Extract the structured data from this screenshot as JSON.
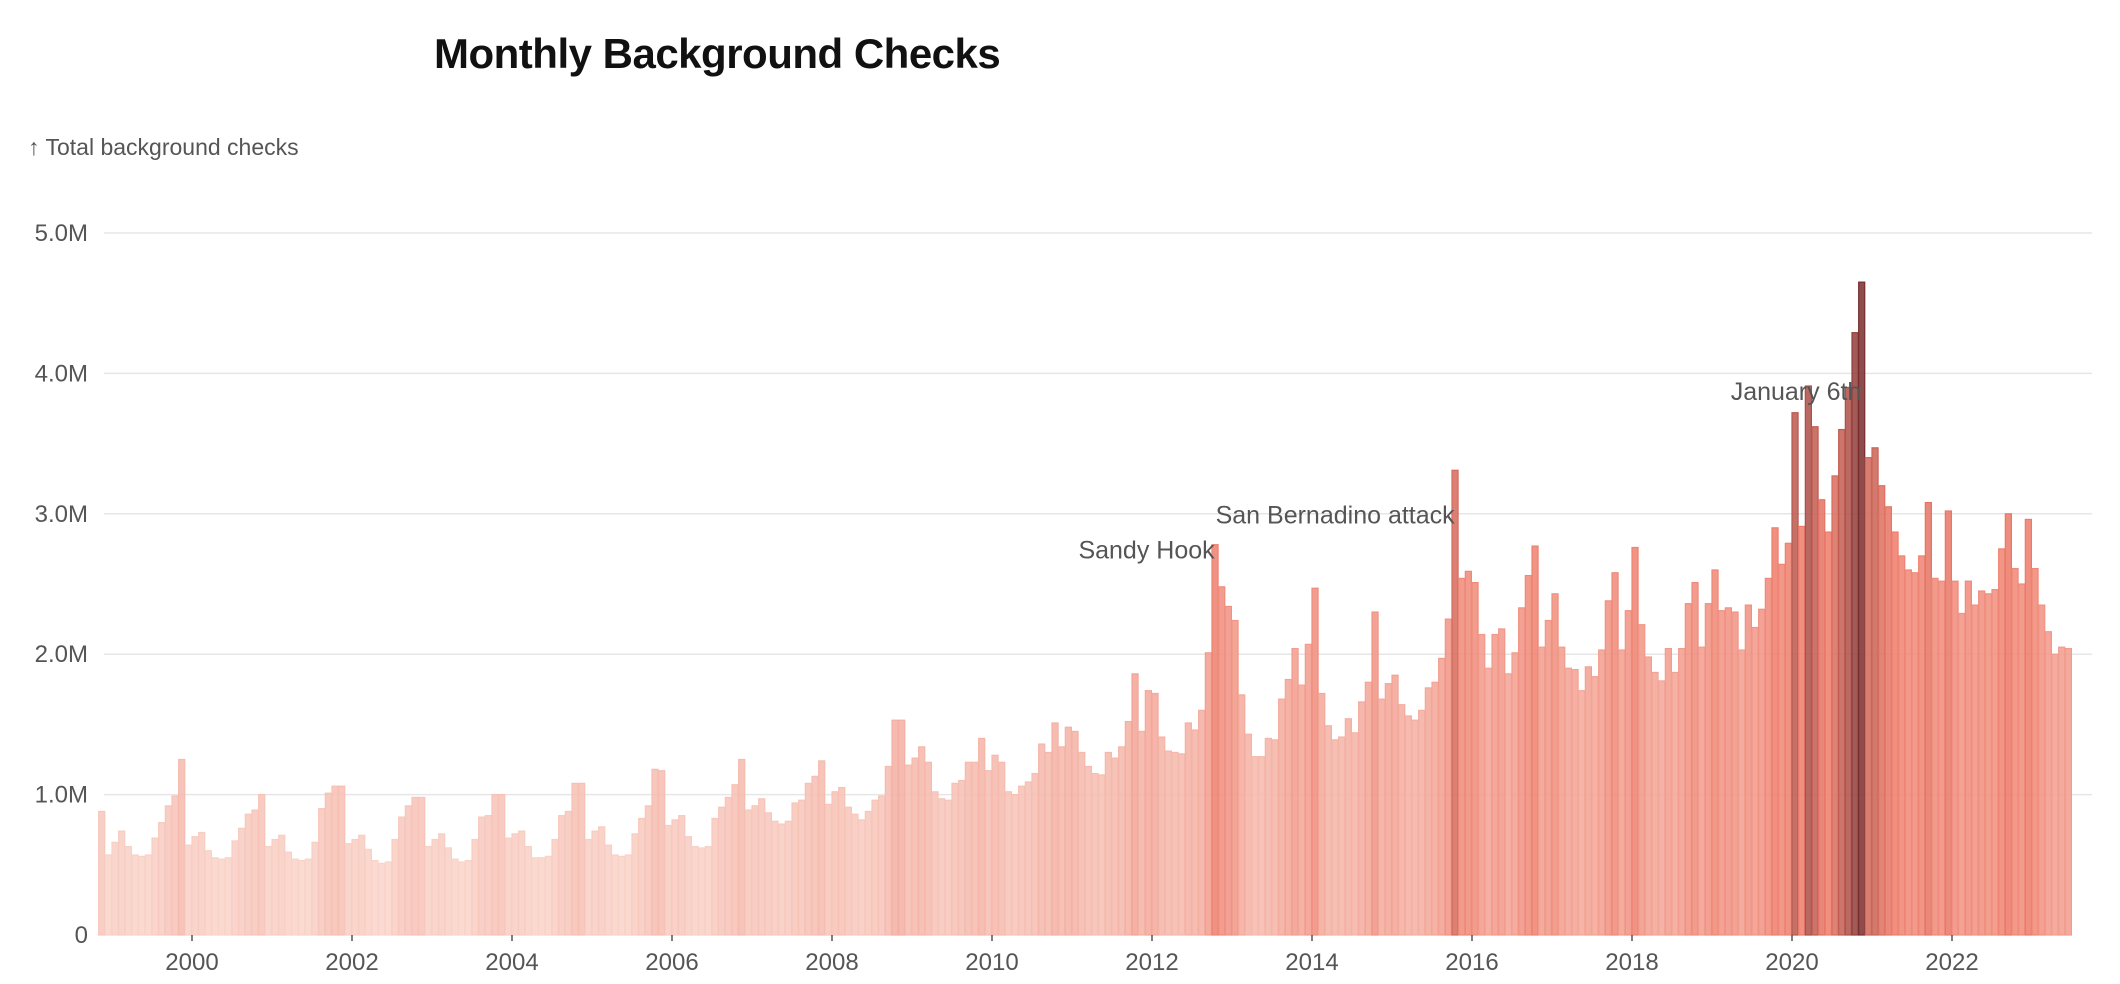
{
  "chart_data": {
    "type": "bar",
    "title": "Monthly Background Checks",
    "ylabel": "↑ Total background checks",
    "xlabel": "",
    "ylim": [
      0,
      5000000
    ],
    "xlim": [
      1998.9,
      2023.75
    ],
    "yticks": [
      {
        "value": 0,
        "label": "0"
      },
      {
        "value": 1000000,
        "label": "1.0M"
      },
      {
        "value": 2000000,
        "label": "2.0M"
      },
      {
        "value": 3000000,
        "label": "3.0M"
      },
      {
        "value": 4000000,
        "label": "4.0M"
      },
      {
        "value": 5000000,
        "label": "5.0M"
      }
    ],
    "xticks": [
      {
        "value": 2000,
        "label": "2000"
      },
      {
        "value": 2002,
        "label": "2002"
      },
      {
        "value": 2004,
        "label": "2004"
      },
      {
        "value": 2006,
        "label": "2006"
      },
      {
        "value": 2008,
        "label": "2008"
      },
      {
        "value": 2010,
        "label": "2010"
      },
      {
        "value": 2012,
        "label": "2012"
      },
      {
        "value": 2014,
        "label": "2014"
      },
      {
        "value": 2016,
        "label": "2016"
      },
      {
        "value": 2018,
        "label": "2018"
      },
      {
        "value": 2020,
        "label": "2020"
      },
      {
        "value": 2022,
        "label": "2022"
      }
    ],
    "start": {
      "year": 1998,
      "month": 11
    },
    "color_scale": {
      "low": "#fbe5dc",
      "mid": "#ee7a68",
      "high": "#7a2e2e",
      "max_value": 4650000
    },
    "annotations": [
      {
        "label": "Sandy Hook",
        "year": 2012,
        "month": 12
      },
      {
        "label": "San Bernadino attack",
        "year": 2015,
        "month": 12
      },
      {
        "label": "January 6th",
        "year": 2021,
        "month": 1
      }
    ],
    "series": [
      {
        "name": "Total background checks",
        "values": [
          880000,
          570000,
          660000,
          740000,
          630000,
          570000,
          560000,
          570000,
          690000,
          800000,
          920000,
          990000,
          1250000,
          640000,
          700000,
          730000,
          600000,
          550000,
          540000,
          550000,
          670000,
          760000,
          860000,
          890000,
          1000000,
          630000,
          680000,
          710000,
          590000,
          540000,
          530000,
          540000,
          660000,
          900000,
          1010000,
          1060000,
          1060000,
          650000,
          680000,
          710000,
          610000,
          530000,
          510000,
          520000,
          680000,
          840000,
          920000,
          980000,
          980000,
          630000,
          680000,
          720000,
          620000,
          540000,
          520000,
          530000,
          680000,
          840000,
          850000,
          1000000,
          1000000,
          690000,
          720000,
          740000,
          630000,
          550000,
          550000,
          560000,
          680000,
          850000,
          880000,
          1080000,
          1080000,
          680000,
          740000,
          770000,
          640000,
          570000,
          560000,
          570000,
          720000,
          830000,
          920000,
          1180000,
          1170000,
          780000,
          820000,
          850000,
          700000,
          630000,
          620000,
          630000,
          830000,
          910000,
          980000,
          1070000,
          1250000,
          890000,
          920000,
          970000,
          870000,
          810000,
          790000,
          810000,
          940000,
          960000,
          1080000,
          1130000,
          1240000,
          930000,
          1020000,
          1050000,
          910000,
          860000,
          820000,
          880000,
          960000,
          990000,
          1200000,
          1530000,
          1530000,
          1210000,
          1260000,
          1340000,
          1230000,
          1020000,
          970000,
          960000,
          1080000,
          1100000,
          1230000,
          1230000,
          1400000,
          1170000,
          1280000,
          1230000,
          1020000,
          1000000,
          1060000,
          1090000,
          1150000,
          1360000,
          1300000,
          1510000,
          1340000,
          1480000,
          1450000,
          1300000,
          1200000,
          1150000,
          1140000,
          1300000,
          1260000,
          1340000,
          1520000,
          1860000,
          1450000,
          1740000,
          1720000,
          1410000,
          1310000,
          1300000,
          1290000,
          1510000,
          1460000,
          1600000,
          2010000,
          2780000,
          2480000,
          2340000,
          2240000,
          1710000,
          1430000,
          1270000,
          1270000,
          1400000,
          1390000,
          1680000,
          1820000,
          2040000,
          1780000,
          2070000,
          2470000,
          1720000,
          1490000,
          1390000,
          1410000,
          1540000,
          1440000,
          1660000,
          1800000,
          2300000,
          1680000,
          1790000,
          1850000,
          1640000,
          1560000,
          1530000,
          1600000,
          1760000,
          1800000,
          1970000,
          2250000,
          3310000,
          2540000,
          2590000,
          2510000,
          2140000,
          1900000,
          2140000,
          2180000,
          1860000,
          2010000,
          2330000,
          2560000,
          2770000,
          2050000,
          2240000,
          2430000,
          2050000,
          1900000,
          1890000,
          1740000,
          1910000,
          1840000,
          2030000,
          2380000,
          2580000,
          2030000,
          2310000,
          2760000,
          2210000,
          1980000,
          1870000,
          1810000,
          2040000,
          1870000,
          2040000,
          2360000,
          2510000,
          2050000,
          2360000,
          2600000,
          2310000,
          2330000,
          2300000,
          2030000,
          2350000,
          2190000,
          2320000,
          2540000,
          2900000,
          2640000,
          2790000,
          3720000,
          2910000,
          3910000,
          3620000,
          3100000,
          2870000,
          3270000,
          3600000,
          3900000,
          4290000,
          4650000,
          3400000,
          3470000,
          3200000,
          3050000,
          2870000,
          2700000,
          2600000,
          2580000,
          2700000,
          3080000,
          2540000,
          2520000,
          3020000,
          2520000,
          2290000,
          2520000,
          2350000,
          2450000,
          2430000,
          2460000,
          2750000,
          3000000,
          2610000,
          2500000,
          2960000,
          2610000,
          2350000,
          2160000,
          2000000,
          2050000,
          2040000
        ]
      }
    ]
  }
}
